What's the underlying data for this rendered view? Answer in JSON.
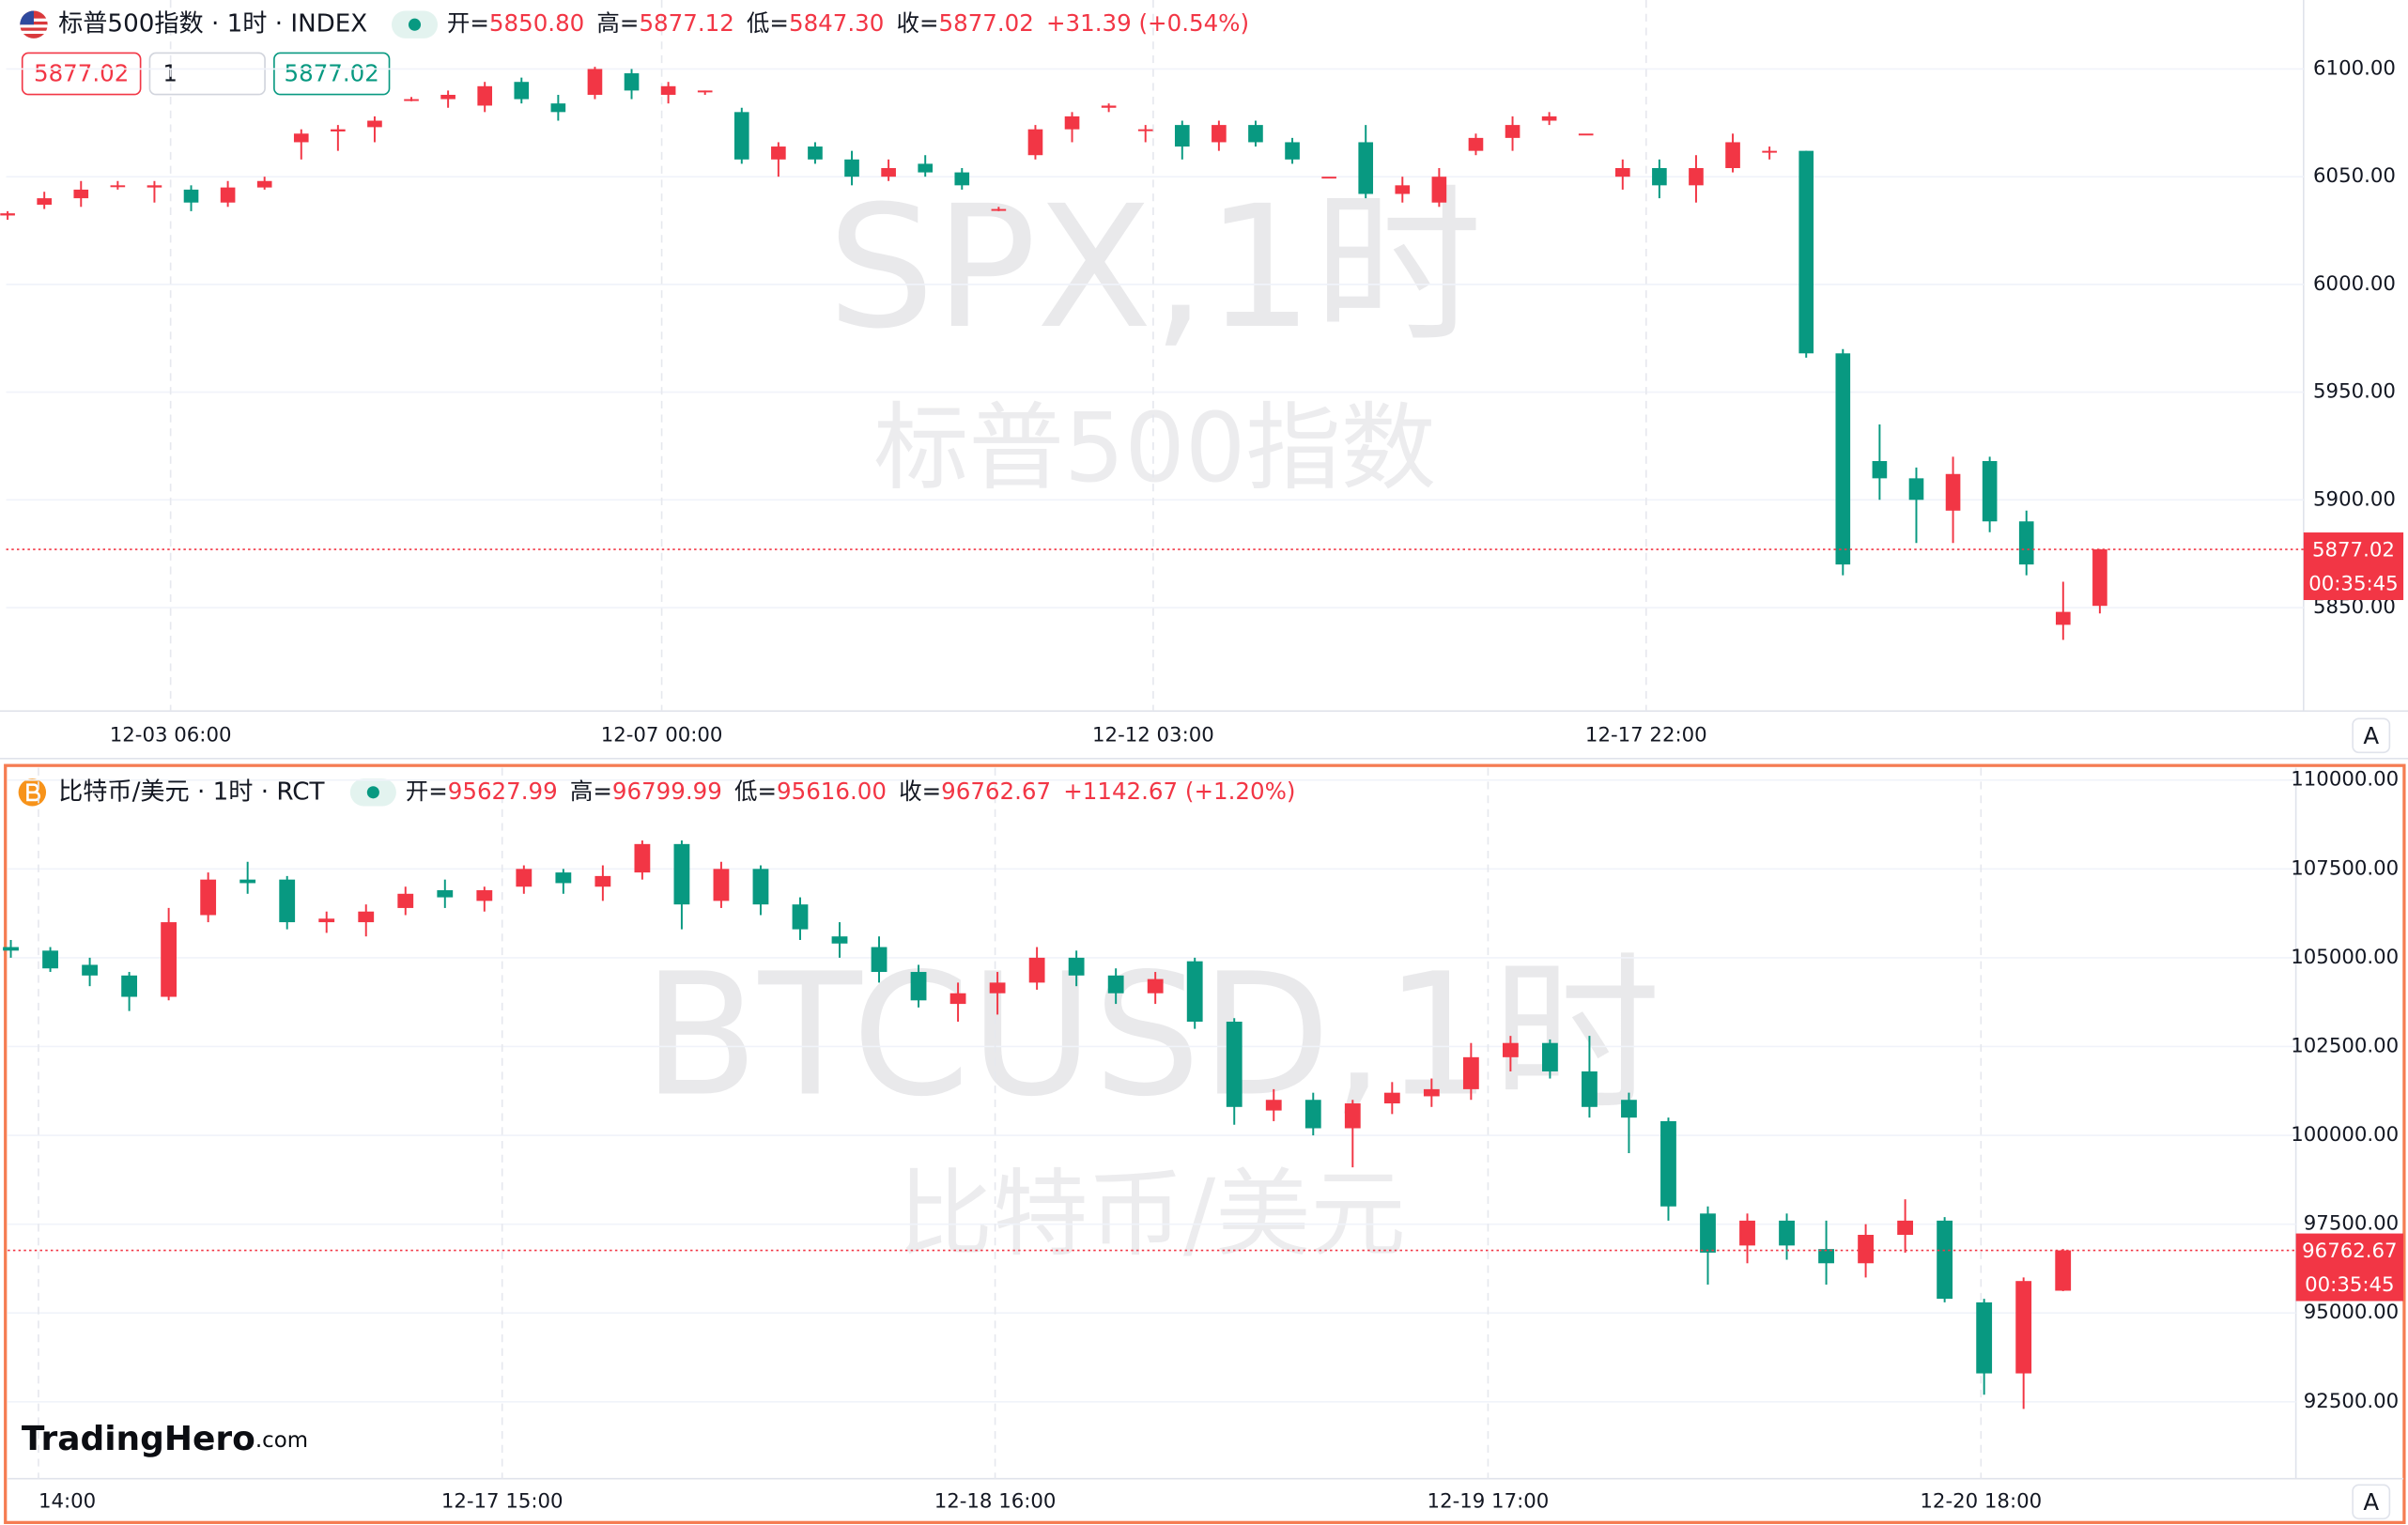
{
  "order_boxes": [
    "5877.02",
    "1",
    "5877.02"
  ],
  "chart_data": [
    {
      "type": "candlestick",
      "title": "标普500指数 · 1时 · INDEX",
      "ohlc_legend": [
        {
          "label": "开=",
          "value": "5850.80"
        },
        {
          "label": "高=",
          "value": "5877.12"
        },
        {
          "label": "低=",
          "value": "5847.30"
        },
        {
          "label": "收=",
          "value": "5877.02"
        }
      ],
      "change": "+31.39 (+0.54%)",
      "watermark": "SPX,1时",
      "watermark_sub": "标普500指数",
      "up_color": "#f23645",
      "down_color": "#089981",
      "grid": true,
      "ylim": [
        5802,
        6132
      ],
      "yticks": [
        {
          "value": 5850,
          "label": "5850.00"
        },
        {
          "value": 5900,
          "label": "5900.00"
        },
        {
          "value": 5950,
          "label": "5950.00"
        },
        {
          "value": 6000,
          "label": "6000.00"
        },
        {
          "value": 6050,
          "label": "6050.00"
        },
        {
          "value": 6100,
          "label": "6100.00"
        }
      ],
      "xlim": [
        -0.04,
        62.55
      ],
      "xticks": [
        {
          "value": 4.44,
          "label": "12-03 06:00"
        },
        {
          "value": 17.82,
          "label": "12-07 00:00"
        },
        {
          "value": 31.21,
          "label": "12-12 03:00"
        },
        {
          "value": 44.64,
          "label": "12-17 22:00"
        }
      ],
      "last_price": {
        "value": 5877.02,
        "label": "5877.02"
      },
      "countdown": "00:35:45",
      "auto_button": "A",
      "candles": [
        [
          6032,
          6034,
          6030,
          6033
        ],
        [
          6037,
          6043,
          6035,
          6040
        ],
        [
          6040,
          6048,
          6036,
          6044
        ],
        [
          6046,
          6048,
          6044,
          6046
        ],
        [
          6045,
          6048,
          6038,
          6046
        ],
        [
          6044,
          6046,
          6034,
          6038
        ],
        [
          6038,
          6048,
          6036,
          6045
        ],
        [
          6045,
          6050,
          6044,
          6048
        ],
        [
          6066,
          6072,
          6058,
          6070
        ],
        [
          6071,
          6074,
          6062,
          6072
        ],
        [
          6073,
          6078,
          6066,
          6076
        ],
        [
          6086,
          6087,
          6085,
          6086
        ],
        [
          6086,
          6090,
          6082,
          6088
        ],
        [
          6083,
          6094,
          6080,
          6092
        ],
        [
          6094,
          6096,
          6084,
          6086
        ],
        [
          6084,
          6088,
          6076,
          6080
        ],
        [
          6088,
          6101,
          6086,
          6100
        ],
        [
          6098,
          6100,
          6086,
          6090
        ],
        [
          6088,
          6094,
          6084,
          6092
        ],
        [
          6090,
          6090,
          6088,
          6090
        ],
        [
          6080,
          6082,
          6056,
          6058
        ],
        [
          6058,
          6066,
          6050,
          6064
        ],
        [
          6064,
          6066,
          6056,
          6058
        ],
        [
          6058,
          6062,
          6046,
          6050
        ],
        [
          6050,
          6058,
          6048,
          6054
        ],
        [
          6056,
          6060,
          6050,
          6052
        ],
        [
          6052,
          6054,
          6044,
          6046
        ],
        [
          6035,
          6036,
          6034,
          6035
        ],
        [
          6060,
          6074,
          6058,
          6072
        ],
        [
          6072,
          6080,
          6066,
          6078
        ],
        [
          6082,
          6084,
          6080,
          6083
        ],
        [
          6072,
          6074,
          6066,
          6072
        ],
        [
          6074,
          6076,
          6058,
          6064
        ],
        [
          6066,
          6076,
          6062,
          6074
        ],
        [
          6074,
          6076,
          6064,
          6066
        ],
        [
          6066,
          6068,
          6056,
          6058
        ],
        [
          6050,
          6050,
          6050,
          6050
        ],
        [
          6066,
          6074,
          6040,
          6042
        ],
        [
          6042,
          6050,
          6038,
          6046
        ],
        [
          6038,
          6054,
          6036,
          6050
        ],
        [
          6062,
          6070,
          6060,
          6068
        ],
        [
          6068,
          6078,
          6062,
          6074
        ],
        [
          6076,
          6080,
          6074,
          6078
        ],
        [
          6070,
          6070,
          6070,
          6070
        ],
        [
          6050,
          6058,
          6044,
          6054
        ],
        [
          6054,
          6058,
          6040,
          6046
        ],
        [
          6046,
          6060,
          6038,
          6054
        ],
        [
          6054,
          6070,
          6052,
          6066
        ],
        [
          6062,
          6064,
          6058,
          6062
        ],
        [
          6062,
          6062,
          5966,
          5968
        ],
        [
          5968,
          5970,
          5865,
          5870
        ],
        [
          5918,
          5935,
          5900,
          5910
        ],
        [
          5910,
          5915,
          5880,
          5900
        ],
        [
          5895,
          5920,
          5880,
          5912
        ],
        [
          5918,
          5920,
          5885,
          5890
        ],
        [
          5890,
          5895,
          5865,
          5870
        ],
        [
          5842,
          5862,
          5835,
          5848
        ],
        [
          5850.8,
          5877.12,
          5847.3,
          5877.02
        ]
      ]
    },
    {
      "type": "candlestick",
      "title": "比特币/美元 · 1时 · RCT",
      "ohlc_legend": [
        {
          "label": "开=",
          "value": "95627.99"
        },
        {
          "label": "高=",
          "value": "96799.99"
        },
        {
          "label": "低=",
          "value": "95616.00"
        },
        {
          "label": "收=",
          "value": "96762.67"
        }
      ],
      "change": "+1142.67 (+1.20%)",
      "watermark": "BTCUSD,1时",
      "watermark_sub": "比特币/美元",
      "up_color": "#f23645",
      "down_color": "#089981",
      "grid": true,
      "ylim": [
        90335,
        110346
      ],
      "yticks": [
        {
          "value": 92500,
          "label": "92500.00"
        },
        {
          "value": 95000,
          "label": "95000.00"
        },
        {
          "value": 97500,
          "label": "97500.00"
        },
        {
          "value": 100000,
          "label": "100000.00"
        },
        {
          "value": 102500,
          "label": "102500.00"
        },
        {
          "value": 105000,
          "label": "105000.00"
        },
        {
          "value": 107500,
          "label": "107500.00"
        },
        {
          "value": 110000,
          "label": "110000.00"
        }
      ],
      "xlim": [
        -0.08,
        57.9
      ],
      "xticks": [
        {
          "value": 0.7,
          "label": "14:00"
        },
        {
          "value": 12.45,
          "label": "12-17 15:00"
        },
        {
          "value": 24.94,
          "label": "12-18 16:00"
        },
        {
          "value": 37.43,
          "label": "12-19 17:00"
        },
        {
          "value": 49.92,
          "label": "12-20 18:00"
        }
      ],
      "last_price": {
        "value": 96762.67,
        "label": "96762.67"
      },
      "countdown": "00:35:45",
      "auto_button": "A",
      "brand": "TradingHero",
      "brand_suffix": ".com",
      "candles": [
        [
          105300,
          105500,
          105000,
          105200
        ],
        [
          105200,
          105300,
          104600,
          104700
        ],
        [
          104800,
          105000,
          104200,
          104500
        ],
        [
          104500,
          104600,
          103500,
          103900
        ],
        [
          103900,
          106400,
          103800,
          106000
        ],
        [
          106200,
          107400,
          106000,
          107200
        ],
        [
          107200,
          107700,
          106800,
          107100
        ],
        [
          107200,
          107300,
          105800,
          106000
        ],
        [
          106000,
          106300,
          105700,
          106100
        ],
        [
          106000,
          106500,
          105600,
          106300
        ],
        [
          106400,
          107000,
          106200,
          106800
        ],
        [
          106900,
          107200,
          106400,
          106700
        ],
        [
          106600,
          107000,
          106300,
          106900
        ],
        [
          107000,
          107600,
          106800,
          107500
        ],
        [
          107400,
          107500,
          106800,
          107100
        ],
        [
          107000,
          107600,
          106600,
          107300
        ],
        [
          107400,
          108300,
          107200,
          108200
        ],
        [
          108200,
          108300,
          105800,
          106500
        ],
        [
          106600,
          107700,
          106400,
          107500
        ],
        [
          107500,
          107600,
          106200,
          106500
        ],
        [
          106500,
          106700,
          105500,
          105800
        ],
        [
          105600,
          106000,
          105000,
          105400
        ],
        [
          105300,
          105600,
          104300,
          104600
        ],
        [
          104600,
          104800,
          103600,
          103800
        ],
        [
          103700,
          104300,
          103200,
          104000
        ],
        [
          104000,
          104600,
          103400,
          104300
        ],
        [
          104300,
          105300,
          104100,
          105000
        ],
        [
          105000,
          105200,
          104200,
          104500
        ],
        [
          104500,
          104700,
          103700,
          104000
        ],
        [
          104000,
          104600,
          103700,
          104400
        ],
        [
          104900,
          105000,
          103000,
          103200
        ],
        [
          103200,
          103300,
          100300,
          100800
        ],
        [
          100700,
          101300,
          100400,
          101000
        ],
        [
          101000,
          101200,
          100000,
          100200
        ],
        [
          100200,
          101000,
          99100,
          100900
        ],
        [
          100900,
          101500,
          100600,
          101200
        ],
        [
          101100,
          101600,
          100800,
          101300
        ],
        [
          101300,
          102600,
          101000,
          102200
        ],
        [
          102200,
          102800,
          101800,
          102600
        ],
        [
          102600,
          102700,
          101600,
          101800
        ],
        [
          101800,
          102800,
          100500,
          100800
        ],
        [
          101000,
          101200,
          99500,
          100500
        ],
        [
          100400,
          100500,
          97600,
          98000
        ],
        [
          97800,
          98000,
          95800,
          96700
        ],
        [
          96900,
          97800,
          96400,
          97600
        ],
        [
          97600,
          97800,
          96500,
          96900
        ],
        [
          96800,
          97600,
          95800,
          96400
        ],
        [
          96400,
          97500,
          96000,
          97200
        ],
        [
          97200,
          98200,
          96700,
          97600
        ],
        [
          97600,
          97700,
          95300,
          95400
        ],
        [
          95300,
          95400,
          92700,
          93300
        ],
        [
          93300,
          96000,
          92300,
          95900
        ],
        [
          95627.99,
          96799.99,
          95616.0,
          96762.67
        ]
      ]
    }
  ]
}
